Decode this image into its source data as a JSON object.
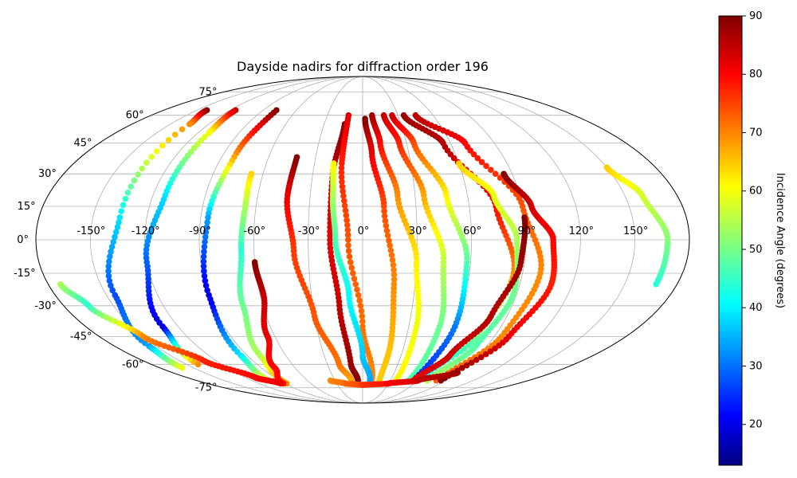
{
  "chart_data": {
    "type": "scatter",
    "projection": "mollweide",
    "title": "Dayside nadirs for diffraction order 196",
    "x_ticks": [
      "-150°",
      "-120°",
      "-90°",
      "-60°",
      "-30°",
      "0°",
      "30°",
      "60°",
      "90°",
      "120°",
      "150°"
    ],
    "y_ticks": [
      "75°",
      "60°",
      "45°",
      "30°",
      "15°",
      "0°",
      "-15°",
      "-30°",
      "-45°",
      "-60°",
      "-75°"
    ],
    "xlim": [
      -180,
      180
    ],
    "ylim": [
      -90,
      90
    ],
    "grid": true,
    "colorbar": {
      "label": "Incidence Angle (degrees)",
      "colormap": "jet",
      "range": [
        13,
        90
      ],
      "ticks": [
        "20",
        "30",
        "40",
        "50",
        "60",
        "70",
        "80",
        "90"
      ]
    },
    "series": [
      {
        "lon": [
          -141,
          -135,
          -135,
          -145,
          -155,
          -160
        ],
        "lat": [
          63,
          55,
          10,
          -25,
          -50,
          -62
        ],
        "incidence": [
          90,
          70,
          40,
          28,
          35,
          60
        ]
      },
      {
        "lon": [
          -115,
          -112,
          -113,
          -120,
          -130,
          -140
        ],
        "lat": [
          63,
          50,
          20,
          -10,
          -40,
          -60
        ],
        "incidence": [
          85,
          60,
          40,
          30,
          20,
          70
        ]
      },
      {
        "lon": [
          -78,
          -82,
          -86,
          -90,
          -95,
          -102
        ],
        "lat": [
          63,
          40,
          10,
          -25,
          -55,
          -70
        ],
        "incidence": [
          90,
          70,
          35,
          20,
          40,
          60
        ]
      },
      {
        "lon": [
          -67,
          -66,
          -67,
          -72,
          -80,
          -88
        ],
        "lat": [
          30,
          15,
          -5,
          -30,
          -55,
          -72
        ],
        "incidence": [
          65,
          55,
          45,
          50,
          55,
          70
        ]
      },
      {
        "lon": [
          -60,
          -58,
          -65,
          -78,
          -92
        ],
        "lat": [
          -10,
          -25,
          -45,
          -62,
          -72
        ],
        "incidence": [
          90,
          85,
          82,
          80,
          80
        ]
      },
      {
        "lon": [
          -42,
          -43,
          -38,
          -30,
          -20,
          -12
        ],
        "lat": [
          38,
          20,
          -5,
          -35,
          -60,
          -70
        ],
        "incidence": [
          90,
          82,
          76,
          74,
          72,
          68
        ]
      },
      {
        "lon": [
          -14,
          -18,
          -18,
          -14,
          -10,
          -5
        ],
        "lat": [
          55,
          30,
          0,
          -30,
          -60,
          -70
        ],
        "incidence": [
          90,
          85,
          82,
          85,
          88,
          90
        ]
      },
      {
        "lon": [
          -12,
          -13,
          -8,
          0,
          10
        ],
        "lat": [
          60,
          35,
          0,
          -40,
          -70
        ],
        "incidence": [
          83,
          78,
          74,
          72,
          70
        ]
      },
      {
        "lon": [
          -18,
          -17,
          -15,
          -8,
          0,
          8
        ],
        "lat": [
          35,
          20,
          0,
          -25,
          -55,
          -70
        ],
        "incidence": [
          62,
          55,
          48,
          42,
          38,
          35
        ]
      },
      {
        "lon": [
          2,
          6,
          12,
          18,
          20,
          18
        ],
        "lat": [
          58,
          40,
          15,
          -20,
          -50,
          -70
        ],
        "incidence": [
          90,
          82,
          75,
          70,
          66,
          65
        ]
      },
      {
        "lon": [
          8,
          12,
          20,
          30,
          35,
          36
        ],
        "lat": [
          60,
          45,
          20,
          -10,
          -40,
          -70
        ],
        "incidence": [
          88,
          80,
          70,
          62,
          60,
          62
        ]
      },
      {
        "lon": [
          18,
          25,
          35,
          45,
          50,
          50
        ],
        "lat": [
          60,
          45,
          20,
          -10,
          -40,
          -70
        ],
        "incidence": [
          85,
          78,
          68,
          56,
          50,
          48
        ]
      },
      {
        "lon": [
          25,
          35,
          48,
          58,
          60,
          55
        ],
        "lat": [
          60,
          45,
          20,
          -10,
          -40,
          -70
        ],
        "incidence": [
          85,
          75,
          62,
          48,
          32,
          25
        ]
      },
      {
        "lon": [
          35,
          55,
          75,
          85,
          78,
          60
        ],
        "lat": [
          60,
          45,
          15,
          -15,
          -45,
          -70
        ],
        "incidence": [
          88,
          86,
          80,
          70,
          50,
          40
        ]
      },
      {
        "lon": [
          45,
          70,
          90,
          100,
          95,
          80
        ],
        "lat": [
          60,
          45,
          15,
          -15,
          -45,
          -70
        ],
        "incidence": [
          86,
          80,
          74,
          70,
          70,
          74
        ]
      },
      {
        "lon": [
          60,
          75,
          85,
          88,
          82,
          70
        ],
        "lat": [
          35,
          20,
          0,
          -25,
          -50,
          -70
        ],
        "incidence": [
          65,
          60,
          55,
          50,
          48,
          55
        ]
      },
      {
        "lon": [
          85,
          95,
          105,
          108,
          100,
          85
        ],
        "lat": [
          30,
          15,
          0,
          -20,
          -45,
          -70
        ],
        "incidence": [
          90,
          84,
          80,
          78,
          82,
          90
        ]
      },
      {
        "lon": [
          90,
          88,
          80,
          68,
          55
        ],
        "lat": [
          10,
          -10,
          -35,
          -55,
          -70
        ],
        "incidence": [
          90,
          88,
          86,
          84,
          82
        ]
      },
      {
        "lon": [
          150,
          160,
          168,
          168
        ],
        "lat": [
          33,
          20,
          0,
          -20
        ],
        "incidence": [
          65,
          58,
          52,
          45
        ]
      },
      {
        "lon": [
          -173,
          -165,
          -150,
          -130,
          -110,
          -95
        ],
        "lat": [
          -20,
          -30,
          -45,
          -58,
          -68,
          -72
        ],
        "incidence": [
          55,
          45,
          70,
          78,
          80,
          82
        ]
      },
      {
        "lon": [
          -35,
          -20,
          0,
          30,
          60,
          90
        ],
        "lat": [
          -70,
          -72,
          -73,
          -72,
          -70,
          -65
        ],
        "incidence": [
          70,
          72,
          76,
          80,
          84,
          88
        ]
      }
    ]
  }
}
